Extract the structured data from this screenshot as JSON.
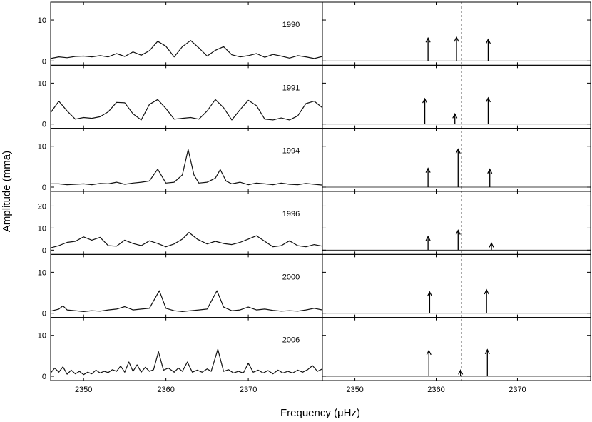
{
  "chart_data": {
    "type": "line",
    "xlabel": "Frequency (μHz)",
    "ylabel": "Amplitude (mma)",
    "xlim": [
      2346,
      2379
    ],
    "x_ticks": [
      2350,
      2360,
      2370
    ],
    "marker_frequency": 2363.1,
    "panels": [
      {
        "label": "1990",
        "ylim": [
          0,
          13.5
        ],
        "y_ticks": [
          0,
          10
        ],
        "spectrum": [
          [
            2346,
            0.6
          ],
          [
            2347,
            1.0
          ],
          [
            2348,
            0.8
          ],
          [
            2349,
            1.1
          ],
          [
            2350,
            1.2
          ],
          [
            2351,
            1.0
          ],
          [
            2352,
            1.3
          ],
          [
            2353,
            1.0
          ],
          [
            2354,
            1.8
          ],
          [
            2355,
            1.1
          ],
          [
            2356,
            2.2
          ],
          [
            2357,
            1.4
          ],
          [
            2358,
            2.5
          ],
          [
            2359,
            4.8
          ],
          [
            2360,
            3.6
          ],
          [
            2361,
            1.0
          ],
          [
            2362,
            3.5
          ],
          [
            2363,
            5.0
          ],
          [
            2364,
            3.2
          ],
          [
            2365,
            1.2
          ],
          [
            2366,
            2.6
          ],
          [
            2367,
            3.5
          ],
          [
            2368,
            1.5
          ],
          [
            2369,
            1.0
          ],
          [
            2370,
            1.3
          ],
          [
            2371,
            1.8
          ],
          [
            2372,
            0.9
          ],
          [
            2373,
            1.6
          ],
          [
            2374,
            1.2
          ],
          [
            2375,
            0.7
          ],
          [
            2376,
            1.3
          ],
          [
            2377,
            1.0
          ],
          [
            2378,
            0.6
          ],
          [
            2379,
            1.1
          ]
        ],
        "arrows": [
          [
            2359.0,
            5.6
          ],
          [
            2362.5,
            5.8
          ],
          [
            2366.4,
            5.3
          ]
        ]
      },
      {
        "label": "1991",
        "ylim": [
          0,
          13.5
        ],
        "y_ticks": [
          0,
          10
        ],
        "spectrum": [
          [
            2346,
            2.8
          ],
          [
            2347,
            5.6
          ],
          [
            2348,
            3.2
          ],
          [
            2349,
            1.2
          ],
          [
            2350,
            1.6
          ],
          [
            2351,
            1.4
          ],
          [
            2352,
            1.8
          ],
          [
            2353,
            3.0
          ],
          [
            2354,
            5.3
          ],
          [
            2355,
            5.2
          ],
          [
            2356,
            2.5
          ],
          [
            2357,
            1.0
          ],
          [
            2358,
            4.8
          ],
          [
            2359,
            6.0
          ],
          [
            2360,
            3.8
          ],
          [
            2361,
            1.2
          ],
          [
            2362,
            1.4
          ],
          [
            2363,
            1.6
          ],
          [
            2364,
            1.2
          ],
          [
            2365,
            3.2
          ],
          [
            2366,
            6.0
          ],
          [
            2367,
            4.0
          ],
          [
            2368,
            1.0
          ],
          [
            2369,
            3.5
          ],
          [
            2370,
            5.8
          ],
          [
            2371,
            4.5
          ],
          [
            2372,
            1.2
          ],
          [
            2373,
            1.0
          ],
          [
            2374,
            1.5
          ],
          [
            2375,
            1.0
          ],
          [
            2376,
            2.0
          ],
          [
            2377,
            5.0
          ],
          [
            2378,
            5.6
          ],
          [
            2379,
            4.0
          ]
        ],
        "arrows": [
          [
            2358.6,
            6.2
          ],
          [
            2362.3,
            2.5
          ],
          [
            2366.4,
            6.4
          ]
        ]
      },
      {
        "label": "1994",
        "ylim": [
          0,
          13.5
        ],
        "y_ticks": [
          0,
          10
        ],
        "spectrum": [
          [
            2346,
            0.8
          ],
          [
            2347,
            0.8
          ],
          [
            2348,
            0.6
          ],
          [
            2349,
            0.7
          ],
          [
            2350,
            0.8
          ],
          [
            2351,
            0.6
          ],
          [
            2352,
            0.9
          ],
          [
            2353,
            0.8
          ],
          [
            2354,
            1.2
          ],
          [
            2355,
            0.7
          ],
          [
            2356,
            1.0
          ],
          [
            2357,
            1.2
          ],
          [
            2358,
            1.5
          ],
          [
            2359,
            4.4
          ],
          [
            2360,
            1.0
          ],
          [
            2361,
            1.2
          ],
          [
            2362,
            3.0
          ],
          [
            2362.7,
            9.2
          ],
          [
            2363.4,
            3.0
          ],
          [
            2364,
            1.0
          ],
          [
            2365,
            1.2
          ],
          [
            2366,
            2.2
          ],
          [
            2366.6,
            4.3
          ],
          [
            2367.3,
            1.5
          ],
          [
            2368,
            0.8
          ],
          [
            2369,
            1.2
          ],
          [
            2370,
            0.6
          ],
          [
            2371,
            1.0
          ],
          [
            2372,
            0.8
          ],
          [
            2373,
            0.6
          ],
          [
            2374,
            1.0
          ],
          [
            2375,
            0.7
          ],
          [
            2376,
            0.6
          ],
          [
            2377,
            0.9
          ],
          [
            2378,
            0.7
          ],
          [
            2379,
            0.5
          ]
        ],
        "arrows": [
          [
            2359.0,
            4.6
          ],
          [
            2362.7,
            9.3
          ],
          [
            2366.6,
            4.4
          ]
        ]
      },
      {
        "label": "1996",
        "ylim": [
          0,
          25
        ],
        "y_ticks": [
          0,
          10,
          20
        ],
        "spectrum": [
          [
            2346,
            1.0
          ],
          [
            2347,
            2.0
          ],
          [
            2348,
            3.5
          ],
          [
            2349,
            4.0
          ],
          [
            2350,
            6.0
          ],
          [
            2351,
            4.5
          ],
          [
            2352,
            5.8
          ],
          [
            2353,
            2.0
          ],
          [
            2354,
            1.8
          ],
          [
            2355,
            4.5
          ],
          [
            2356,
            3.0
          ],
          [
            2357,
            2.0
          ],
          [
            2358,
            4.2
          ],
          [
            2359,
            3.0
          ],
          [
            2360,
            1.5
          ],
          [
            2361,
            2.8
          ],
          [
            2362,
            5.0
          ],
          [
            2362.8,
            8.0
          ],
          [
            2363.8,
            5.0
          ],
          [
            2365,
            2.8
          ],
          [
            2366,
            4.0
          ],
          [
            2367,
            3.0
          ],
          [
            2368,
            2.5
          ],
          [
            2369,
            3.5
          ],
          [
            2370,
            5.0
          ],
          [
            2371,
            6.5
          ],
          [
            2372,
            4.0
          ],
          [
            2373,
            1.5
          ],
          [
            2374,
            2.0
          ],
          [
            2375,
            4.2
          ],
          [
            2376,
            2.0
          ],
          [
            2377,
            1.5
          ],
          [
            2378,
            2.5
          ],
          [
            2379,
            1.8
          ]
        ],
        "arrows": [
          [
            2359.0,
            6.2
          ],
          [
            2362.7,
            9.0
          ],
          [
            2366.8,
            3.2
          ]
        ]
      },
      {
        "label": "2000",
        "ylim": [
          0,
          13.5
        ],
        "y_ticks": [
          0,
          10
        ],
        "spectrum": [
          [
            2346,
            0.5
          ],
          [
            2347,
            1.0
          ],
          [
            2347.5,
            1.8
          ],
          [
            2348,
            0.8
          ],
          [
            2349,
            0.6
          ],
          [
            2350,
            0.4
          ],
          [
            2351,
            0.6
          ],
          [
            2352,
            0.5
          ],
          [
            2353,
            0.8
          ],
          [
            2354,
            1.0
          ],
          [
            2355,
            1.6
          ],
          [
            2356,
            0.8
          ],
          [
            2357,
            1.0
          ],
          [
            2358,
            1.2
          ],
          [
            2359.2,
            5.5
          ],
          [
            2360,
            1.2
          ],
          [
            2361,
            0.6
          ],
          [
            2362,
            0.4
          ],
          [
            2363,
            0.6
          ],
          [
            2364,
            0.8
          ],
          [
            2365,
            1.0
          ],
          [
            2366.2,
            5.5
          ],
          [
            2367,
            1.5
          ],
          [
            2368,
            0.6
          ],
          [
            2369,
            0.8
          ],
          [
            2370,
            1.5
          ],
          [
            2371,
            0.8
          ],
          [
            2372,
            1.0
          ],
          [
            2373,
            0.7
          ],
          [
            2374,
            0.5
          ],
          [
            2375,
            0.6
          ],
          [
            2376,
            0.5
          ],
          [
            2377,
            0.8
          ],
          [
            2378,
            1.2
          ],
          [
            2379,
            0.8
          ]
        ],
        "arrows": [
          [
            2359.2,
            5.2
          ],
          [
            2366.2,
            5.7
          ]
        ]
      },
      {
        "label": "2006",
        "ylim": [
          0,
          13.5
        ],
        "y_ticks": [
          0,
          10
        ],
        "spectrum": [
          [
            2346,
            0.8
          ],
          [
            2346.5,
            2.0
          ],
          [
            2347,
            1.0
          ],
          [
            2347.5,
            2.3
          ],
          [
            2348,
            0.5
          ],
          [
            2348.5,
            1.5
          ],
          [
            2349,
            0.6
          ],
          [
            2349.5,
            1.2
          ],
          [
            2350,
            0.4
          ],
          [
            2350.5,
            1.0
          ],
          [
            2351,
            0.6
          ],
          [
            2351.5,
            1.5
          ],
          [
            2352,
            0.8
          ],
          [
            2352.5,
            1.2
          ],
          [
            2353,
            0.9
          ],
          [
            2353.5,
            1.6
          ],
          [
            2354,
            1.2
          ],
          [
            2354.5,
            2.5
          ],
          [
            2355,
            1.0
          ],
          [
            2355.5,
            3.5
          ],
          [
            2356,
            1.2
          ],
          [
            2356.5,
            2.8
          ],
          [
            2357,
            1.0
          ],
          [
            2357.5,
            2.2
          ],
          [
            2358,
            1.2
          ],
          [
            2358.5,
            1.6
          ],
          [
            2359.1,
            6.0
          ],
          [
            2359.7,
            1.5
          ],
          [
            2360.3,
            2.0
          ],
          [
            2361,
            1.0
          ],
          [
            2361.5,
            2.0
          ],
          [
            2362,
            1.2
          ],
          [
            2362.6,
            3.5
          ],
          [
            2363.2,
            1.0
          ],
          [
            2363.8,
            1.5
          ],
          [
            2364.4,
            1.0
          ],
          [
            2365,
            1.8
          ],
          [
            2365.5,
            1.2
          ],
          [
            2366.3,
            6.6
          ],
          [
            2367,
            1.2
          ],
          [
            2367.6,
            1.6
          ],
          [
            2368.2,
            0.8
          ],
          [
            2368.8,
            1.2
          ],
          [
            2369.4,
            0.8
          ],
          [
            2370,
            3.2
          ],
          [
            2370.6,
            1.0
          ],
          [
            2371.2,
            1.5
          ],
          [
            2371.8,
            0.8
          ],
          [
            2372.4,
            1.4
          ],
          [
            2373,
            0.6
          ],
          [
            2373.6,
            1.5
          ],
          [
            2374.2,
            0.8
          ],
          [
            2374.8,
            1.2
          ],
          [
            2375.4,
            0.8
          ],
          [
            2376,
            1.5
          ],
          [
            2376.6,
            1.0
          ],
          [
            2377.2,
            1.6
          ],
          [
            2377.8,
            2.6
          ],
          [
            2378.4,
            1.2
          ],
          [
            2379,
            1.8
          ]
        ],
        "arrows": [
          [
            2359.1,
            6.3
          ],
          [
            2363.0,
            1.5
          ],
          [
            2366.3,
            6.5
          ]
        ]
      }
    ]
  }
}
